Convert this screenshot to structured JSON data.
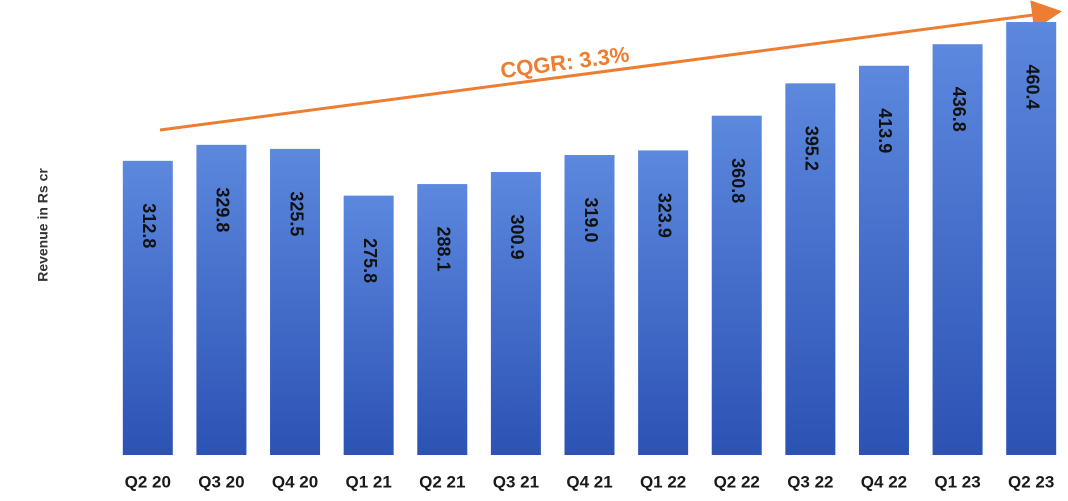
{
  "chart_data": {
    "type": "bar",
    "y_label": "Revenue  in Rs cr",
    "annotation": "CQGR: 3.3%",
    "annotation_color": "#ed7d31",
    "categories": [
      "Q2 20",
      "Q3 20",
      "Q4 20",
      "Q1 21",
      "Q2 21",
      "Q3 21",
      "Q4 21",
      "Q1 22",
      "Q2 22",
      "Q3 22",
      "Q4 22",
      "Q1 23",
      "Q2 23"
    ],
    "values": [
      312.8,
      329.8,
      325.5,
      275.8,
      288.1,
      300.9,
      319,
      323.9,
      360.8,
      395.2,
      413.9,
      436.8,
      460.4
    ],
    "value_labels": [
      "312.8",
      "329.8",
      "325.5",
      "275.8",
      "288.1",
      "300.9",
      "319.0",
      "323.9",
      "360.8",
      "395.2",
      "413.9",
      "436.8",
      "460.4"
    ],
    "color": "#3a63c8",
    "ylim": [
      0,
      480
    ]
  }
}
